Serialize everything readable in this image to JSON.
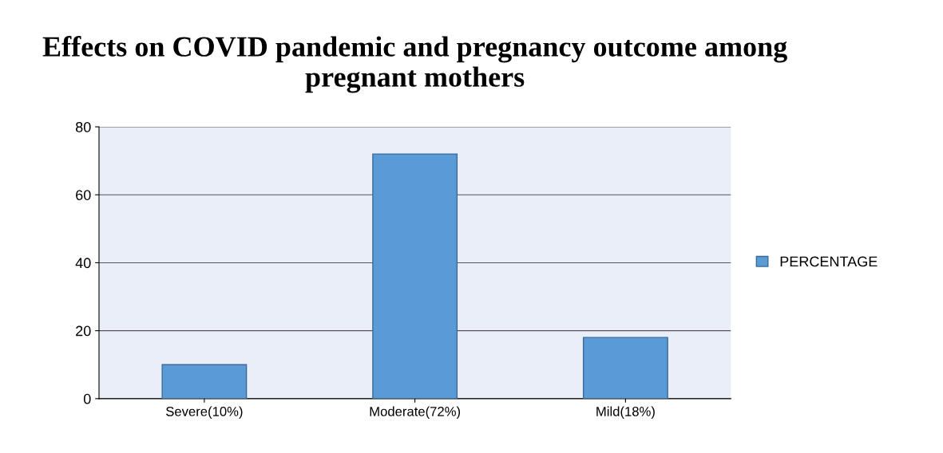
{
  "chart_data": {
    "type": "bar",
    "title": "Effects on COVID pandemic and pregnancy outcome among pregnant mothers",
    "categories": [
      "Severe(10%)",
      "Moderate(72%)",
      "Mild(18%)"
    ],
    "series": [
      {
        "name": "PERCENTAGE",
        "color": "#5b9bd5",
        "values": [
          10,
          72,
          18
        ]
      }
    ],
    "ylim": [
      0,
      80
    ],
    "yticks": [
      0,
      20,
      40,
      60,
      80
    ],
    "grid": "y",
    "legend": "right"
  }
}
